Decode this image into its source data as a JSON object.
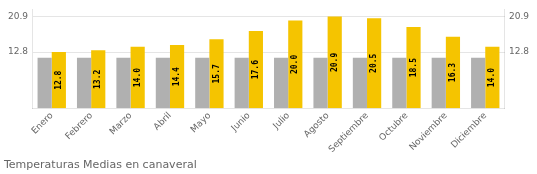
{
  "chart_data": {
    "type": "bar",
    "title": "Temperaturas Medias en canaveral",
    "categories": [
      "Enero",
      "Febrero",
      "Marzo",
      "Abril",
      "Mayo",
      "Junio",
      "Julio",
      "Agosto",
      "Septiembre",
      "Octubre",
      "Noviembre",
      "Diciembre"
    ],
    "series": [
      {
        "color": "#B0B0B0",
        "values": [
          11.5,
          11.5,
          11.5,
          11.5,
          11.5,
          11.5,
          11.5,
          11.5,
          11.5,
          11.5,
          11.5,
          11.5
        ]
      },
      {
        "color": "#F5C400",
        "values": [
          12.8,
          13.2,
          14.0,
          14.4,
          15.7,
          17.6,
          20.0,
          20.9,
          20.5,
          18.5,
          16.3,
          14.0
        ],
        "value_labels": [
          "12.8",
          "13.2",
          "14.0",
          "14.4",
          "15.7",
          "17.6",
          "20.0",
          "20.9",
          "20.5",
          "18.5",
          "16.3",
          "14.0"
        ],
        "data_labels": true
      }
    ],
    "ylim": [
      0,
      22.5
    ],
    "yticks": [
      12.8,
      20.9
    ],
    "y2lim": [
      0,
      22.5
    ],
    "y2ticks": [
      12.8,
      20.9
    ],
    "grid": true
  }
}
